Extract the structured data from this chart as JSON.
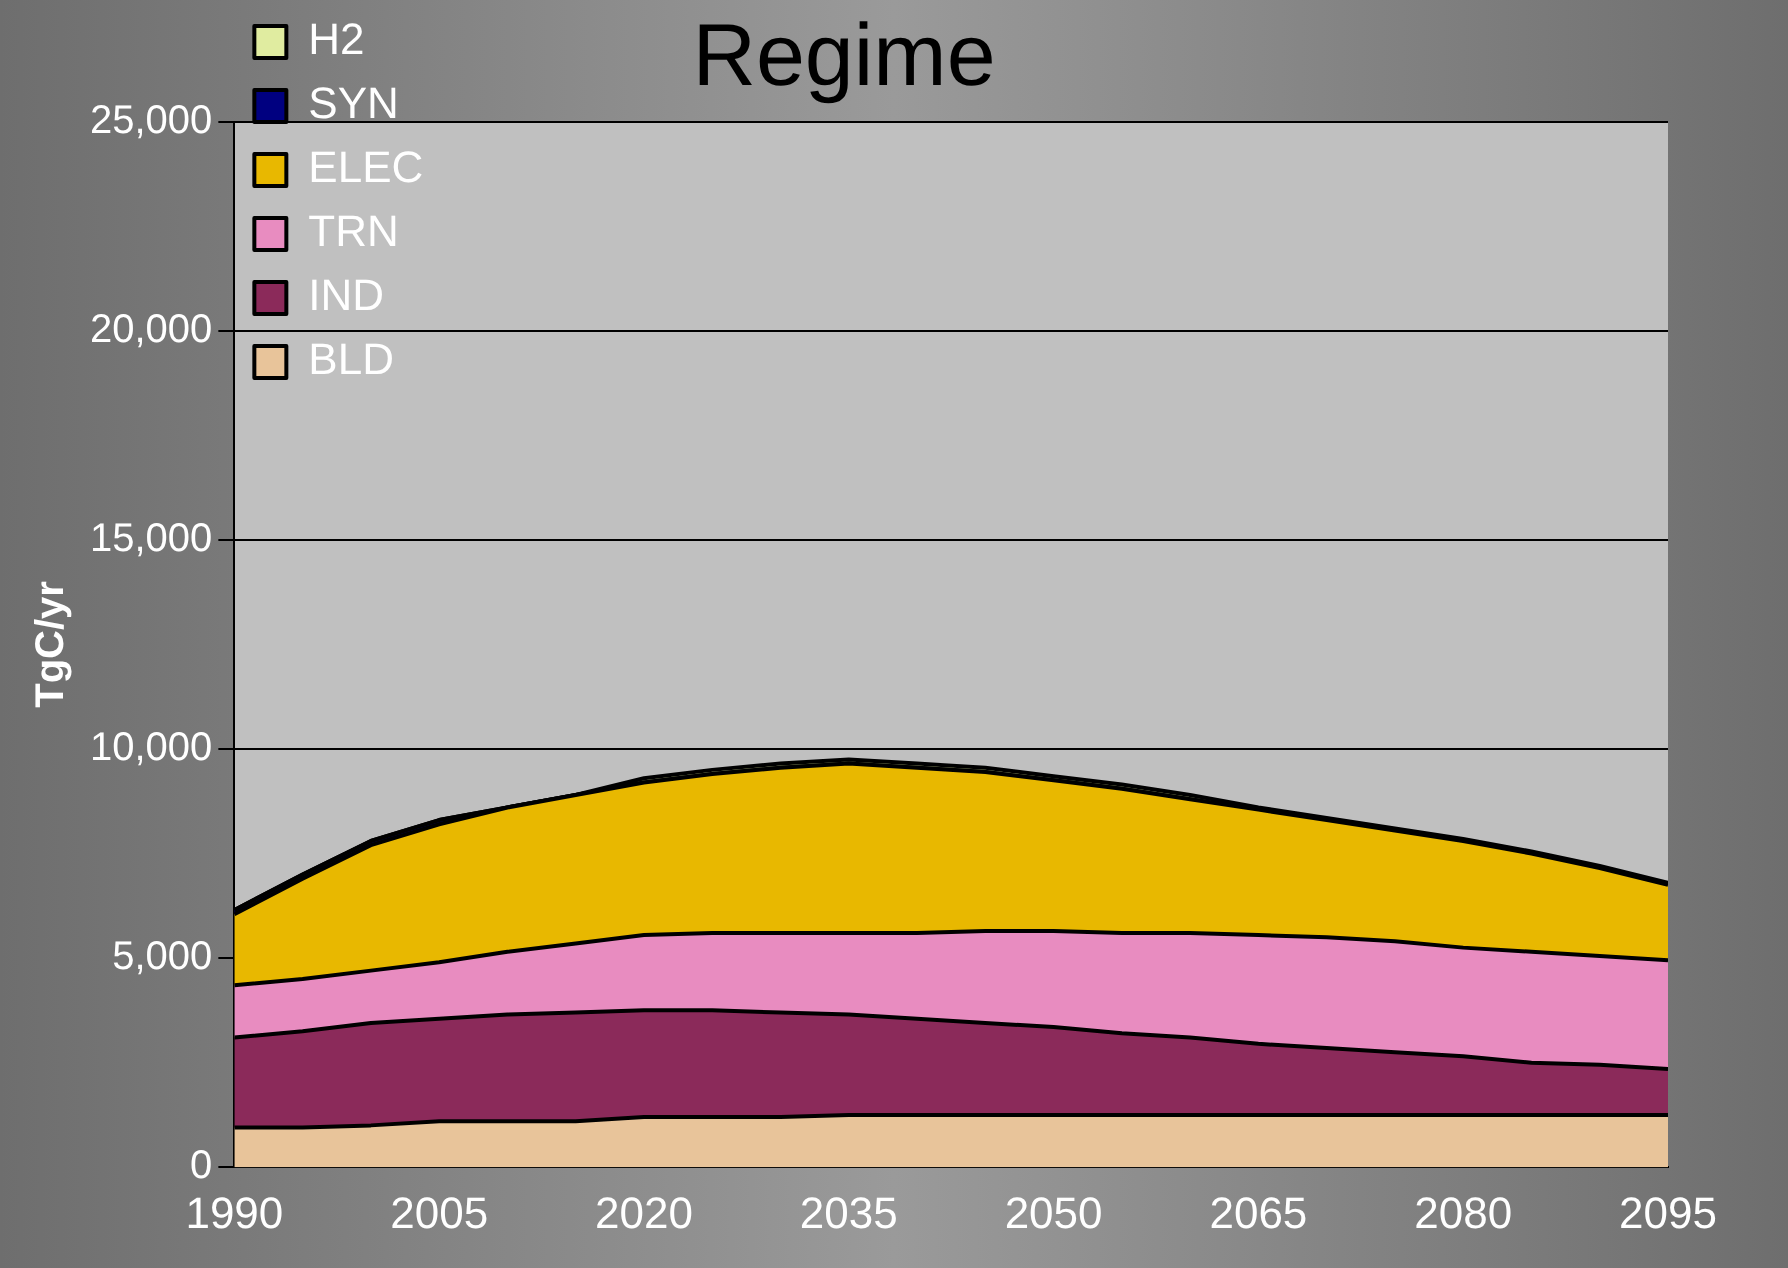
{
  "chart_data": {
    "type": "area",
    "title": "Regime",
    "ylabel": "TgC/yr",
    "stacked": true,
    "x": [
      1990,
      1995,
      2000,
      2005,
      2010,
      2015,
      2020,
      2025,
      2030,
      2035,
      2040,
      2045,
      2050,
      2055,
      2060,
      2065,
      2070,
      2075,
      2080,
      2085,
      2090,
      2095
    ],
    "series": [
      {
        "name": "BLD",
        "color": "#e8c49a",
        "values": [
          950,
          950,
          1000,
          1100,
          1100,
          1100,
          1200,
          1200,
          1200,
          1250,
          1250,
          1250,
          1250,
          1250,
          1250,
          1250,
          1250,
          1250,
          1250,
          1250,
          1250,
          1250
        ]
      },
      {
        "name": "IND",
        "color": "#8b2a5a",
        "values": [
          2150,
          2300,
          2450,
          2450,
          2550,
          2600,
          2550,
          2550,
          2500,
          2400,
          2300,
          2200,
          2100,
          1950,
          1850,
          1700,
          1600,
          1500,
          1400,
          1250,
          1200,
          1100
        ]
      },
      {
        "name": "TRN",
        "color": "#e88cc0",
        "values": [
          1250,
          1250,
          1250,
          1350,
          1500,
          1650,
          1800,
          1850,
          1900,
          1950,
          2050,
          2200,
          2300,
          2400,
          2500,
          2600,
          2650,
          2650,
          2600,
          2650,
          2600,
          2600
        ]
      },
      {
        "name": "ELEC",
        "color": "#e8b800",
        "values": [
          1700,
          2400,
          3000,
          3300,
          3450,
          3550,
          3650,
          3800,
          3950,
          4050,
          3950,
          3800,
          3600,
          3450,
          3200,
          3000,
          2800,
          2650,
          2550,
          2350,
          2100,
          1800
        ]
      },
      {
        "name": "SYN",
        "color": "#000080",
        "values": [
          100,
          100,
          100,
          100,
          0,
          0,
          0,
          0,
          0,
          0,
          0,
          0,
          0,
          0,
          0,
          0,
          0,
          0,
          0,
          0,
          0,
          0
        ]
      },
      {
        "name": "H2",
        "color": "#e0eca0",
        "values": [
          0,
          0,
          0,
          0,
          0,
          0,
          100,
          100,
          100,
          100,
          100,
          100,
          100,
          100,
          100,
          50,
          50,
          50,
          50,
          50,
          50,
          50
        ]
      }
    ],
    "xlim": [
      1990,
      2095
    ],
    "xticks": [
      1990,
      2005,
      2020,
      2035,
      2050,
      2065,
      2080,
      2095
    ],
    "ylim": [
      0,
      25000
    ],
    "yticks": [
      {
        "value": 0,
        "label": "0"
      },
      {
        "value": 5000,
        "label": "5,000"
      },
      {
        "value": 10000,
        "label": "10,000"
      },
      {
        "value": 15000,
        "label": "15,000"
      },
      {
        "value": 20000,
        "label": "20,000"
      },
      {
        "value": 25000,
        "label": "25,000"
      }
    ],
    "grid": "y",
    "legend": "top left"
  }
}
